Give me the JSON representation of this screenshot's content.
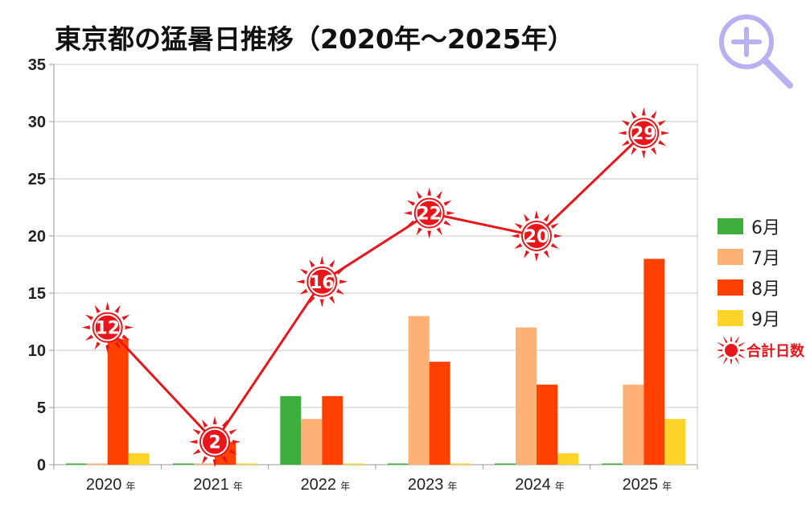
{
  "chart_data": {
    "type": "bar",
    "title": "東京都の猛暑日推移（2020年～2025年）",
    "categories": [
      "2020",
      "2021",
      "2022",
      "2023",
      "2024",
      "2025"
    ],
    "category_suffix": "年",
    "series": [
      {
        "name": "6月",
        "color": "#3daf3d",
        "values": [
          0,
          0,
          6,
          0,
          0,
          0
        ]
      },
      {
        "name": "7月",
        "color": "#fdb175",
        "values": [
          0,
          0,
          4,
          13,
          12,
          7
        ]
      },
      {
        "name": "8月",
        "color": "#ff4100",
        "values": [
          11,
          2,
          6,
          9,
          7,
          18
        ]
      },
      {
        "name": "9月",
        "color": "#ffd42a",
        "values": [
          1,
          0,
          0,
          0,
          1,
          4
        ]
      }
    ],
    "totals": {
      "name": "合計日数",
      "color": "#e8161b",
      "values": [
        12,
        2,
        16,
        22,
        20,
        29
      ]
    },
    "ylim": [
      0,
      35
    ],
    "yticks": [
      0,
      5,
      10,
      15,
      20,
      25,
      30,
      35
    ],
    "grid": true,
    "legend": "right",
    "xlabel": "",
    "ylabel": ""
  },
  "icons": {
    "zoom": "zoom-in-icon",
    "total_marker": "sun-icon"
  }
}
